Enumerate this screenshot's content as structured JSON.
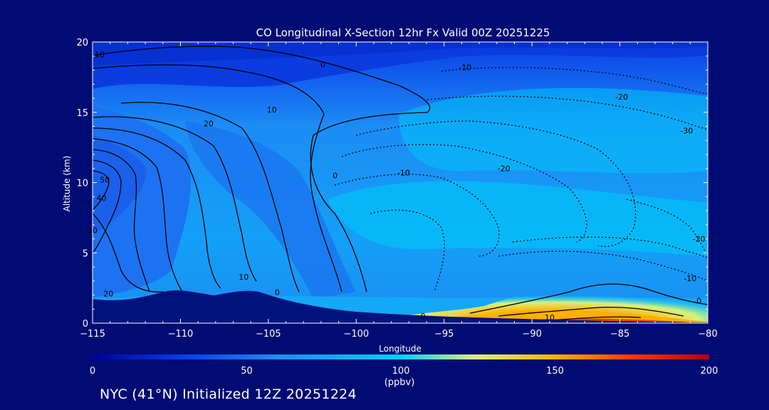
{
  "colors": {
    "background": "#000b73",
    "terrain": "#00127e",
    "colorbar": [
      "#0000a0",
      "#0a3fe6",
      "#1d8cf6",
      "#00d2fa",
      "#d9f07c",
      "#ffb400",
      "#ff3a00",
      "#b80000"
    ]
  },
  "footer": "NYC (41°N) Initialized 12Z 20251224",
  "chart_data": {
    "type": "heatmap",
    "title": "CO Longitudinal X-Section 12hr  Fx Valid 00Z 20251225",
    "xlabel": "Longitude",
    "ylabel": "Altitude (km)",
    "xlim": [
      -115,
      -80
    ],
    "ylim": [
      0,
      20
    ],
    "x_ticks": [
      "-115",
      "-110",
      "-105",
      "-100",
      "-95",
      "-90",
      "-85",
      "-80"
    ],
    "y_ticks": [
      "0",
      "5",
      "10",
      "15",
      "20"
    ],
    "colorbar": {
      "range": [
        0,
        200
      ],
      "ticks": [
        "0",
        "50",
        "100",
        "150",
        "200"
      ],
      "unit": "(ppbv)"
    },
    "contour_labels": [
      {
        "text": "10",
        "lon": -114.6,
        "alt": 18.9
      },
      {
        "text": "0",
        "lon": -101.9,
        "alt": 18.2
      },
      {
        "text": "10",
        "lon": -104.8,
        "alt": 15.0
      },
      {
        "text": "20",
        "lon": -108.4,
        "alt": 14.0
      },
      {
        "text": "50",
        "lon": -114.3,
        "alt": 10.0
      },
      {
        "text": "40",
        "lon": -114.5,
        "alt": 8.7
      },
      {
        "text": "30",
        "lon": -115.0,
        "alt": 6.4
      },
      {
        "text": "0",
        "lon": -101.2,
        "alt": 10.3
      },
      {
        "text": "10",
        "lon": -106.4,
        "alt": 3.1
      },
      {
        "text": "0",
        "lon": -104.5,
        "alt": 2.0
      },
      {
        "text": "20",
        "lon": -114.1,
        "alt": 1.9
      },
      {
        "text": "-10",
        "lon": -93.8,
        "alt": 18.0
      },
      {
        "text": "-20",
        "lon": -84.9,
        "alt": 15.9
      },
      {
        "text": "-30",
        "lon": -81.2,
        "alt": 13.5
      },
      {
        "text": "-10",
        "lon": -97.3,
        "alt": 10.5
      },
      {
        "text": "-20",
        "lon": -91.6,
        "alt": 10.8
      },
      {
        "text": "-20",
        "lon": -80.5,
        "alt": 5.8
      },
      {
        "text": "-10",
        "lon": -81.0,
        "alt": 3.0
      },
      {
        "text": "0",
        "lon": -80.5,
        "alt": 1.4
      },
      {
        "text": "0",
        "lon": -96.2,
        "alt": 0.3
      },
      {
        "text": "10",
        "lon": -89.0,
        "alt": 0.2
      }
    ],
    "grid": false,
    "legend": "colorbar-bottom"
  }
}
